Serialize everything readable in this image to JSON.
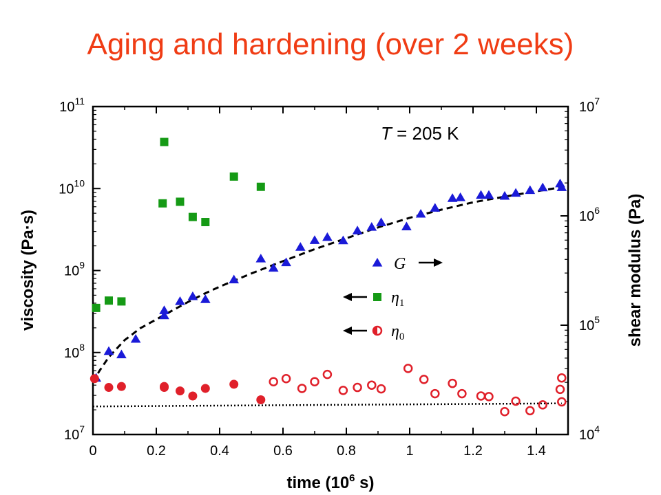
{
  "slide_title": "Aging and hardening (over 2 weeks)",
  "chart_data": {
    "type": "scatter",
    "xlabel": "time (10",
    "xlabel_exp": "6",
    "xlabel_unit": " s)",
    "ylabel_left": "viscosity (Pa·s)",
    "ylabel_right": "shear modulus (Pa)",
    "annotation_T": "T",
    "annotation_value": " = 205 K",
    "xlim": [
      0,
      1.5
    ],
    "ylim_left": [
      10000000.0,
      100000000000.0
    ],
    "ylim_right": [
      10000.0,
      10000000.0
    ],
    "y_scale": "log",
    "x_ticks": [
      "0",
      "0.2",
      "0.4",
      "0.6",
      "0.8",
      "1",
      "1.2",
      "1.4"
    ],
    "left_ticks": [
      {
        "base": "10",
        "exp": "7"
      },
      {
        "base": "10",
        "exp": "8"
      },
      {
        "base": "10",
        "exp": "9"
      },
      {
        "base": "10",
        "exp": "10"
      },
      {
        "base": "10",
        "exp": "11"
      }
    ],
    "right_ticks": [
      {
        "base": "10",
        "exp": "4"
      },
      {
        "base": "10",
        "exp": "5"
      },
      {
        "base": "10",
        "exp": "6"
      },
      {
        "base": "10",
        "exp": "7"
      }
    ],
    "legend": [
      {
        "label": "G",
        "sub": "",
        "arrow": "right",
        "marker": "triangle",
        "color": "#1a1ad8"
      },
      {
        "label": "η",
        "sub": "1",
        "arrow": "left",
        "marker": "square",
        "color": "#159a15"
      },
      {
        "label": "η",
        "sub": "0",
        "arrow": "left",
        "marker": "half-circle",
        "color": "#e0202a"
      }
    ],
    "series": [
      {
        "name": "G",
        "axis": "right",
        "marker": "triangle",
        "color": "#1a1ad8",
        "x": [
          0.01,
          0.05,
          0.09,
          0.135,
          0.225,
          0.225,
          0.275,
          0.315,
          0.355,
          0.445,
          0.53,
          0.57,
          0.61,
          0.655,
          0.7,
          0.74,
          0.79,
          0.835,
          0.88,
          0.91,
          0.99,
          1.035,
          1.08,
          1.135,
          1.16,
          1.225,
          1.25,
          1.3,
          1.335,
          1.38,
          1.42,
          1.475,
          1.48
        ],
        "y": [
          33000,
          58000,
          54000,
          75000,
          123000,
          137000,
          166000,
          184000,
          173000,
          262000,
          407000,
          335000,
          376000,
          520000,
          600000,
          640000,
          597000,
          735000,
          793000,
          874000,
          800000,
          1045000,
          1185000,
          1455000,
          1480000,
          1555000,
          1555000,
          1525000,
          1625000,
          1720000,
          1820000,
          1980000,
          1830000
        ]
      },
      {
        "name": "η1",
        "axis": "left",
        "marker": "square",
        "color": "#159a15",
        "x": [
          0.01,
          0.05,
          0.09,
          0.225,
          0.22,
          0.275,
          0.315,
          0.355,
          0.445,
          0.53
        ],
        "y": [
          350000000.0,
          430000000.0,
          420000000.0,
          37000000000.0,
          6600000000.0,
          6900000000.0,
          4500000000.0,
          3900000000.0,
          14000000000.0,
          10500000000.0
        ]
      },
      {
        "name": "η0 (filled)",
        "axis": "left",
        "marker": "circle-filled",
        "color": "#e0202a",
        "x": [
          0.005,
          0.05,
          0.09,
          0.225,
          0.225,
          0.275,
          0.315,
          0.355,
          0.445,
          0.53
        ],
        "y": [
          48000000.0,
          37500000.0,
          38500000.0,
          38500000.0,
          37500000.0,
          34000000.0,
          29500000.0,
          36500000.0,
          41000000.0,
          26500000.0
        ]
      },
      {
        "name": "η0 (open)",
        "axis": "left",
        "marker": "circle-open",
        "color": "#e0202a",
        "x": [
          0.57,
          0.61,
          0.66,
          0.7,
          0.74,
          0.79,
          0.835,
          0.88,
          0.91,
          0.995,
          1.045,
          1.08,
          1.135,
          1.165,
          1.225,
          1.25,
          1.3,
          1.335,
          1.38,
          1.42,
          1.475,
          1.48,
          1.48
        ],
        "y": [
          44000000.0,
          48000000.0,
          36500000.0,
          44000000.0,
          54000000.0,
          34500000.0,
          37500000.0,
          40000000.0,
          36000000.0,
          64000000.0,
          47000000.0,
          31500000.0,
          42000000.0,
          31500000.0,
          29500000.0,
          29000000.0,
          19000000.0,
          25500000.0,
          19500000.0,
          23000000.0,
          35500000.0,
          49000000.0,
          25000000.0
        ]
      }
    ],
    "fits": [
      {
        "name": "G fit",
        "axis": "right",
        "style": "dashed",
        "x": [
          0.0,
          0.02,
          0.05,
          0.1,
          0.15,
          0.2,
          0.25,
          0.3,
          0.35,
          0.4,
          0.5,
          0.6,
          0.7,
          0.8,
          0.9,
          1.0,
          1.1,
          1.2,
          1.3,
          1.4,
          1.48
        ],
        "y": [
          30000,
          38000,
          51000,
          73000,
          94000,
          113000,
          136000,
          163000,
          193000,
          225000,
          297000,
          385000,
          496000,
          624000,
          784000,
          960000,
          1140000,
          1330000,
          1500000,
          1680000,
          1830000
        ]
      },
      {
        "name": "η0 baseline",
        "axis": "left",
        "style": "dotted",
        "x": [
          0.0,
          1.48
        ],
        "y": [
          22000000.0,
          24000000.0
        ]
      }
    ]
  }
}
